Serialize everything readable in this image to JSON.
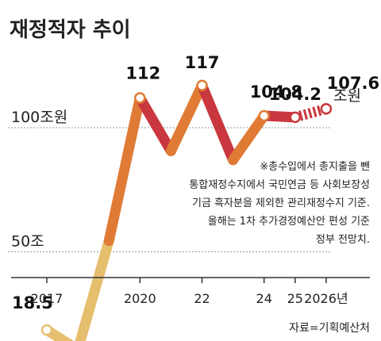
{
  "chart_data": {
    "type": "line",
    "title": "재정적자 추이",
    "unit_label": "조원",
    "x": [
      2017,
      2018,
      2019,
      2020,
      2021,
      2022,
      2023,
      2024,
      2025,
      2026
    ],
    "x_tick_labels": [
      "2017",
      "2020",
      "22",
      "24",
      "25",
      "2026년"
    ],
    "x_tick_years": [
      2017,
      2020,
      2022,
      2024,
      2025,
      2026
    ],
    "values": [
      18.5,
      10.6,
      54.4,
      112,
      90.6,
      117,
      87.0,
      104.8,
      104.2,
      107.6
    ],
    "labeled_points": [
      {
        "year": 2017,
        "text": "18.5"
      },
      {
        "year": 2020,
        "text": "112"
      },
      {
        "year": 2022,
        "text": "117"
      },
      {
        "year": 2024,
        "text": "104.8"
      },
      {
        "year": 2025,
        "text": "104.2"
      },
      {
        "year": 2026,
        "text": "107.6"
      }
    ],
    "reference_lines": [
      {
        "value": 100,
        "label": "100조원"
      },
      {
        "value": 50,
        "label": "50조"
      }
    ],
    "ylim": [
      0,
      125
    ],
    "grid": false,
    "projected_segment": {
      "from": 2025,
      "to": 2026
    },
    "colors": {
      "low": "#e5bf6e",
      "mid": "#e07b35",
      "high": "#c9383e",
      "marker_fill": "#ffffff",
      "axis": "#333333",
      "ref_line": "#999999"
    }
  },
  "note": [
    "※총수입에서 총지출을 뺀",
    "통합재정수지에서 국민연금 등 사회보장성",
    "기금 흑자분을 제외한 관리재정수지 기준.",
    "올해는 1차 추가경정예산안 편성 기준",
    "정부 전망치."
  ],
  "source": "자료=기획예산처"
}
